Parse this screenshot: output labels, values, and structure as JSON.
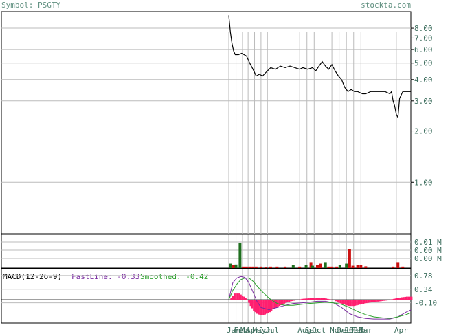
{
  "header": {
    "symbol_label": "Symbol: PSGTY",
    "site_label": "stockta.com"
  },
  "colors": {
    "background": "#ffffff",
    "grid": "#bbbbbb",
    "frame": "#000000",
    "header_text": "#5f8f7f",
    "axis_text": "#3f6f5f",
    "price_line": "#000000",
    "vol_up": "#1f6f1f",
    "vol_down": "#cc1111",
    "fast_line": "#7a2aa0",
    "smoothed_line": "#2aa02a",
    "histogram": "#ff1f6f"
  },
  "chart_data": [
    {
      "type": "line",
      "name": "price",
      "scale": "log",
      "ylim": [
        0.5,
        10
      ],
      "y_ticks": [
        {
          "value": 8.0,
          "label": "8.00"
        },
        {
          "value": 7.0,
          "label": "7.00"
        },
        {
          "value": 6.0,
          "label": "6.00"
        },
        {
          "value": 5.0,
          "label": "5.00"
        },
        {
          "value": 4.0,
          "label": "4.00"
        },
        {
          "value": 3.0,
          "label": "3.00"
        },
        {
          "value": 2.0,
          "label": "2.00"
        },
        {
          "value": 1.0,
          "label": "1.00"
        }
      ],
      "x_labels": [
        {
          "i": 0,
          "label": "Jan"
        },
        {
          "i": 9,
          "label": "Feb"
        },
        {
          "i": 17,
          "label": "Mar"
        },
        {
          "i": 24,
          "label": "Apr"
        },
        {
          "i": 32,
          "label": "May"
        },
        {
          "i": 40,
          "label": "Jun"
        },
        {
          "i": 48,
          "label": "Jul"
        },
        {
          "i": 88,
          "label": "Aug"
        },
        {
          "i": 97,
          "label": "Sep"
        },
        {
          "i": 106,
          "label": "Oct"
        },
        {
          "i": 128,
          "label": "Nov"
        },
        {
          "i": 137,
          "label": "Dec"
        },
        {
          "i": 146,
          "label": "2025"
        },
        {
          "i": 155,
          "label": "Feb"
        },
        {
          "i": 164,
          "label": "Mar"
        },
        {
          "i": 208,
          "label": "Apr"
        }
      ],
      "n": 226,
      "points": [
        [
          0,
          9.5
        ],
        [
          2,
          7.6
        ],
        [
          4,
          6.5
        ],
        [
          6,
          5.9
        ],
        [
          8,
          5.6
        ],
        [
          12,
          5.6
        ],
        [
          16,
          5.7
        ],
        [
          22,
          5.5
        ],
        [
          26,
          5.0
        ],
        [
          30,
          4.6
        ],
        [
          34,
          4.2
        ],
        [
          38,
          4.3
        ],
        [
          42,
          4.2
        ],
        [
          46,
          4.4
        ],
        [
          52,
          4.7
        ],
        [
          58,
          4.6
        ],
        [
          64,
          4.8
        ],
        [
          70,
          4.7
        ],
        [
          76,
          4.8
        ],
        [
          82,
          4.7
        ],
        [
          88,
          4.6
        ],
        [
          92,
          4.7
        ],
        [
          98,
          4.6
        ],
        [
          104,
          4.7
        ],
        [
          108,
          4.5
        ],
        [
          112,
          4.8
        ],
        [
          116,
          5.1
        ],
        [
          120,
          4.8
        ],
        [
          124,
          4.6
        ],
        [
          128,
          4.9
        ],
        [
          132,
          4.5
        ],
        [
          136,
          4.2
        ],
        [
          140,
          4.0
        ],
        [
          144,
          3.6
        ],
        [
          148,
          3.4
        ],
        [
          152,
          3.5
        ],
        [
          156,
          3.4
        ],
        [
          160,
          3.4
        ],
        [
          166,
          3.3
        ],
        [
          170,
          3.3
        ],
        [
          176,
          3.4
        ],
        [
          182,
          3.4
        ],
        [
          188,
          3.4
        ],
        [
          194,
          3.4
        ],
        [
          200,
          3.3
        ],
        [
          202,
          3.4
        ],
        [
          204,
          3.0
        ],
        [
          206,
          2.8
        ],
        [
          208,
          2.5
        ],
        [
          210,
          2.4
        ],
        [
          212,
          3.1
        ],
        [
          216,
          3.4
        ],
        [
          220,
          3.4
        ],
        [
          226,
          3.4
        ]
      ]
    },
    {
      "type": "bar",
      "name": "volume",
      "y_ticks": [
        "0.01 M",
        "0.00 M",
        "0.00 M"
      ],
      "bars": [
        {
          "i": 2,
          "v": 0.15,
          "up": true
        },
        {
          "i": 6,
          "v": 0.1,
          "up": false
        },
        {
          "i": 9,
          "v": 0.12,
          "up": true
        },
        {
          "i": 14,
          "v": 0.85,
          "up": true
        },
        {
          "i": 18,
          "v": 0.05,
          "up": false
        },
        {
          "i": 22,
          "v": 0.05,
          "up": false
        },
        {
          "i": 26,
          "v": 0.05,
          "up": false
        },
        {
          "i": 30,
          "v": 0.05,
          "up": false
        },
        {
          "i": 34,
          "v": 0.05,
          "up": false
        },
        {
          "i": 40,
          "v": 0.05,
          "up": false
        },
        {
          "i": 46,
          "v": 0.04,
          "up": false
        },
        {
          "i": 52,
          "v": 0.05,
          "up": false
        },
        {
          "i": 60,
          "v": 0.05,
          "up": false
        },
        {
          "i": 70,
          "v": 0.05,
          "up": false
        },
        {
          "i": 80,
          "v": 0.1,
          "up": true
        },
        {
          "i": 88,
          "v": 0.05,
          "up": false
        },
        {
          "i": 96,
          "v": 0.1,
          "up": true
        },
        {
          "i": 102,
          "v": 0.2,
          "up": false
        },
        {
          "i": 104,
          "v": 0.08,
          "up": true
        },
        {
          "i": 110,
          "v": 0.1,
          "up": false
        },
        {
          "i": 114,
          "v": 0.15,
          "up": false
        },
        {
          "i": 120,
          "v": 0.2,
          "up": true
        },
        {
          "i": 124,
          "v": 0.05,
          "up": false
        },
        {
          "i": 128,
          "v": 0.05,
          "up": false
        },
        {
          "i": 134,
          "v": 0.05,
          "up": false
        },
        {
          "i": 138,
          "v": 0.1,
          "up": true
        },
        {
          "i": 146,
          "v": 0.15,
          "up": true
        },
        {
          "i": 150,
          "v": 0.65,
          "up": false
        },
        {
          "i": 154,
          "v": 0.08,
          "up": false
        },
        {
          "i": 160,
          "v": 0.1,
          "up": false
        },
        {
          "i": 164,
          "v": 0.1,
          "up": false
        },
        {
          "i": 170,
          "v": 0.06,
          "up": false
        },
        {
          "i": 204,
          "v": 0.05,
          "up": false
        },
        {
          "i": 210,
          "v": 0.2,
          "up": false
        },
        {
          "i": 216,
          "v": 0.05,
          "up": false
        }
      ]
    },
    {
      "type": "line",
      "name": "macd",
      "title": "MACD(12-26-9)",
      "fast_label": "FastLine: -0.33",
      "smoothed_label": "Smoothed: -0.42",
      "y_ticks": [
        {
          "value": 0.78,
          "label": "0.78"
        },
        {
          "value": 0.34,
          "label": "0.34"
        },
        {
          "value": -0.1,
          "label": "-0.10"
        }
      ],
      "zero_line": 0,
      "ylim": [
        -0.75,
        1.0
      ],
      "fast": [
        [
          0,
          0.0
        ],
        [
          5,
          0.55
        ],
        [
          10,
          0.7
        ],
        [
          15,
          0.75
        ],
        [
          20,
          0.72
        ],
        [
          25,
          0.55
        ],
        [
          30,
          0.25
        ],
        [
          35,
          -0.05
        ],
        [
          40,
          -0.25
        ],
        [
          50,
          -0.32
        ],
        [
          60,
          -0.25
        ],
        [
          70,
          -0.18
        ],
        [
          80,
          -0.12
        ],
        [
          90,
          -0.1
        ],
        [
          100,
          -0.08
        ],
        [
          110,
          -0.05
        ],
        [
          120,
          -0.05
        ],
        [
          130,
          -0.1
        ],
        [
          140,
          -0.25
        ],
        [
          150,
          -0.45
        ],
        [
          160,
          -0.55
        ],
        [
          170,
          -0.6
        ],
        [
          180,
          -0.62
        ],
        [
          190,
          -0.62
        ],
        [
          200,
          -0.62
        ],
        [
          210,
          -0.55
        ],
        [
          220,
          -0.4
        ],
        [
          226,
          -0.33
        ]
      ],
      "smoothed": [
        [
          0,
          0.0
        ],
        [
          5,
          0.3
        ],
        [
          10,
          0.5
        ],
        [
          15,
          0.65
        ],
        [
          20,
          0.7
        ],
        [
          25,
          0.7
        ],
        [
          30,
          0.6
        ],
        [
          35,
          0.45
        ],
        [
          40,
          0.3
        ],
        [
          50,
          0.05
        ],
        [
          60,
          -0.12
        ],
        [
          70,
          -0.18
        ],
        [
          80,
          -0.18
        ],
        [
          90,
          -0.15
        ],
        [
          100,
          -0.12
        ],
        [
          110,
          -0.1
        ],
        [
          120,
          -0.08
        ],
        [
          130,
          -0.1
        ],
        [
          140,
          -0.15
        ],
        [
          150,
          -0.25
        ],
        [
          160,
          -0.38
        ],
        [
          170,
          -0.48
        ],
        [
          180,
          -0.55
        ],
        [
          190,
          -0.58
        ],
        [
          200,
          -0.6
        ],
        [
          210,
          -0.55
        ],
        [
          220,
          -0.48
        ],
        [
          226,
          -0.42
        ]
      ],
      "histogram": [
        [
          0,
          0.0
        ],
        [
          6,
          0.2
        ],
        [
          12,
          0.2
        ],
        [
          18,
          0.1
        ],
        [
          22,
          0.0
        ],
        [
          26,
          -0.2
        ],
        [
          30,
          -0.35
        ],
        [
          34,
          -0.45
        ],
        [
          38,
          -0.5
        ],
        [
          42,
          -0.5
        ],
        [
          46,
          -0.45
        ],
        [
          50,
          -0.4
        ],
        [
          54,
          -0.3
        ],
        [
          58,
          -0.25
        ],
        [
          62,
          -0.2
        ],
        [
          66,
          -0.15
        ],
        [
          70,
          -0.1
        ],
        [
          76,
          -0.05
        ],
        [
          82,
          -0.02
        ],
        [
          90,
          0.03
        ],
        [
          100,
          0.05
        ],
        [
          110,
          0.06
        ],
        [
          118,
          0.05
        ],
        [
          124,
          0.02
        ],
        [
          130,
          -0.02
        ],
        [
          136,
          -0.1
        ],
        [
          142,
          -0.15
        ],
        [
          148,
          -0.2
        ],
        [
          154,
          -0.2
        ],
        [
          160,
          -0.17
        ],
        [
          166,
          -0.13
        ],
        [
          172,
          -0.1
        ],
        [
          178,
          -0.08
        ],
        [
          184,
          -0.06
        ],
        [
          190,
          -0.04
        ],
        [
          196,
          -0.02
        ],
        [
          202,
          0.02
        ],
        [
          208,
          0.05
        ],
        [
          214,
          0.08
        ],
        [
          220,
          0.1
        ],
        [
          226,
          0.1
        ]
      ]
    }
  ]
}
